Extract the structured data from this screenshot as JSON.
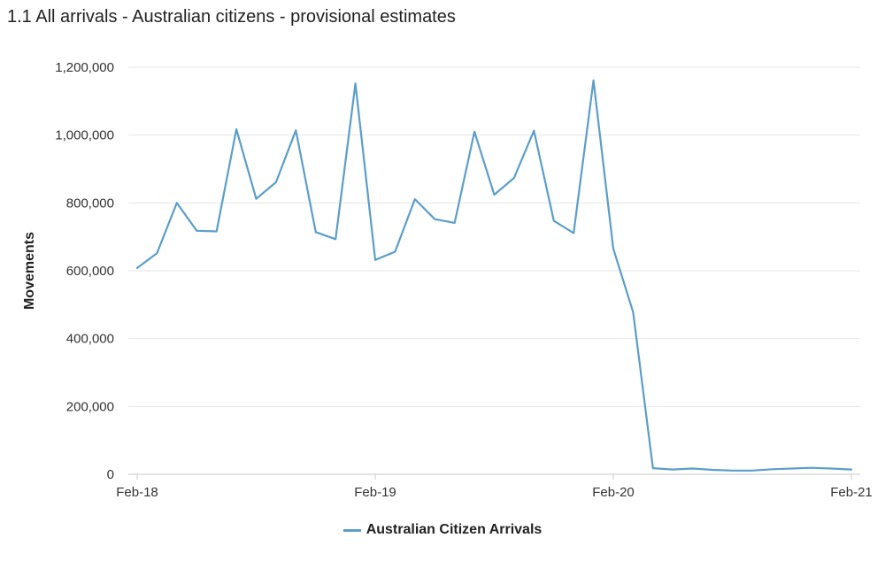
{
  "chart_data": {
    "type": "line",
    "title": "1.1 All arrivals - Australian citizens - provisional estimates",
    "xlabel": "",
    "ylabel": "Movements",
    "x": [
      "2018-02",
      "2018-03",
      "2018-04",
      "2018-05",
      "2018-06",
      "2018-07",
      "2018-08",
      "2018-09",
      "2018-10",
      "2018-11",
      "2018-12",
      "2019-01",
      "2019-02",
      "2019-03",
      "2019-04",
      "2019-05",
      "2019-06",
      "2019-07",
      "2019-08",
      "2019-09",
      "2019-10",
      "2019-11",
      "2019-12",
      "2020-01",
      "2020-02",
      "2020-03",
      "2020-04",
      "2020-05",
      "2020-06",
      "2020-07",
      "2020-08",
      "2020-09",
      "2020-10",
      "2020-11",
      "2020-12",
      "2021-01",
      "2021-02"
    ],
    "x_tick_labels": [
      "Feb-18",
      "Feb-19",
      "Feb-20",
      "Feb-21"
    ],
    "x_tick_positions": [
      "2018-02",
      "2019-02",
      "2020-02",
      "2021-02"
    ],
    "y_tick_labels": [
      "0",
      "200,000",
      "400,000",
      "600,000",
      "800,000",
      "1,000,000",
      "1,200,000"
    ],
    "ylim": [
      0,
      1200000
    ],
    "grid": "horizontal",
    "legend_position": "bottom",
    "series": [
      {
        "name": "Australian Citizen Arrivals",
        "color": "#5b9ec9",
        "values": [
          608000,
          652000,
          800000,
          718000,
          716000,
          1017000,
          812000,
          861000,
          1014000,
          714000,
          693000,
          1152000,
          632000,
          656000,
          811000,
          752000,
          741000,
          1010000,
          824000,
          874000,
          1013000,
          747000,
          711000,
          1161000,
          665000,
          478000,
          18000,
          14000,
          17000,
          13000,
          11000,
          11000,
          15000,
          17000,
          19000,
          17000,
          14000
        ]
      }
    ]
  }
}
